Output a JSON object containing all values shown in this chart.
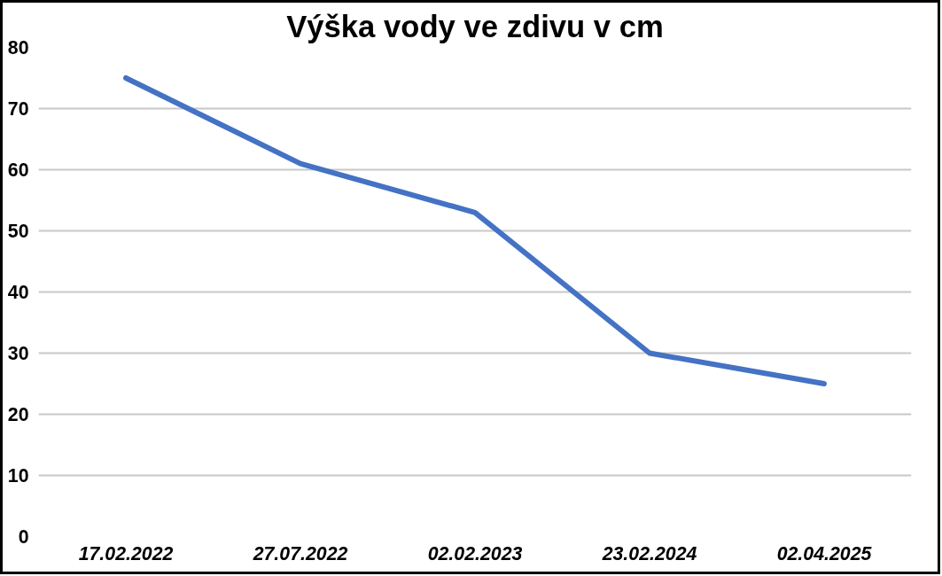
{
  "chart_data": {
    "type": "line",
    "title": "Výška vody ve zdivu v cm",
    "categories": [
      "17.02.2022",
      "27.07.2022",
      "02.02.2023",
      "23.02.2024",
      "02.04.2025"
    ],
    "series": [
      {
        "color": "#4472c4",
        "values": [
          75,
          61,
          53,
          30,
          25
        ]
      }
    ],
    "ylim": [
      0,
      80
    ],
    "yticks": [
      0,
      10,
      20,
      30,
      40,
      50,
      60,
      70,
      80
    ],
    "grid": "y",
    "marker": "none",
    "line_style": "solid"
  }
}
